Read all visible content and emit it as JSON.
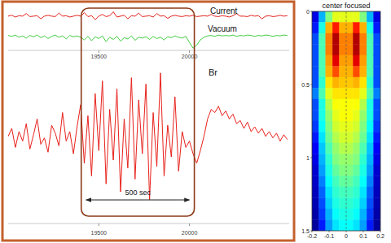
{
  "chart_data": [
    {
      "type": "line",
      "x": [
        19000,
        19020,
        19040,
        19060,
        19080,
        19100,
        19120,
        19140,
        19160,
        19180,
        19200,
        19220,
        19240,
        19260,
        19280,
        19300,
        19320,
        19340,
        19360,
        19380,
        19400,
        19420,
        19440,
        19460,
        19480,
        19500,
        19520,
        19540,
        19560,
        19580,
        19600,
        19620,
        19640,
        19660,
        19680,
        19700,
        19720,
        19740,
        19760,
        19780,
        19800,
        19820,
        19840,
        19860,
        19880,
        19900,
        19920,
        19940,
        19960,
        19980,
        20000,
        20020,
        20040,
        20060,
        20080,
        20100,
        20120,
        20140,
        20160,
        20180,
        20200,
        20220,
        20240,
        20260,
        20280,
        20300,
        20320,
        20340,
        20360,
        20380,
        20400,
        20420,
        20440,
        20460,
        20480,
        20500,
        20520,
        20540
      ],
      "xlim": [
        19000,
        20550
      ],
      "xticks": [
        19500,
        20000
      ],
      "ylim": [
        0,
        100
      ],
      "series": [
        {
          "name": "Current",
          "color": "#e3211c",
          "values": [
            78,
            80,
            76,
            79,
            78,
            84,
            77,
            78,
            79,
            72,
            78,
            80,
            78,
            77,
            85,
            78,
            79,
            76,
            78,
            80,
            78,
            86,
            77,
            79,
            70,
            78,
            82,
            77,
            79,
            88,
            76,
            78,
            80,
            72,
            79,
            78,
            85,
            77,
            78,
            79,
            76,
            84,
            78,
            79,
            73,
            78,
            80,
            78,
            77,
            79,
            78,
            80,
            77,
            78,
            79,
            78,
            82,
            78,
            77,
            79,
            78,
            76,
            79,
            84,
            78,
            78,
            77,
            80,
            78,
            79,
            72,
            78,
            79,
            77,
            78,
            80,
            78,
            79
          ]
        },
        {
          "name": "Vacuum",
          "color": "#3fcc3f",
          "values": [
            34,
            32,
            35,
            30,
            33,
            28,
            34,
            31,
            35,
            29,
            33,
            27,
            32,
            35,
            30,
            33,
            26,
            34,
            31,
            33,
            30,
            24,
            32,
            22,
            31,
            27,
            33,
            20,
            30,
            25,
            32,
            21,
            29,
            26,
            33,
            23,
            30,
            28,
            31,
            25,
            32,
            27,
            30,
            24,
            31,
            29,
            33,
            30,
            28,
            32,
            18,
            5,
            12,
            24,
            30,
            33,
            34,
            32,
            35,
            33,
            34,
            33,
            35,
            32,
            34,
            33,
            35,
            34,
            32,
            34,
            33,
            35,
            34,
            32,
            34,
            33,
            35,
            34
          ]
        }
      ]
    },
    {
      "type": "line",
      "x": [
        19000,
        19020,
        19040,
        19060,
        19080,
        19100,
        19120,
        19140,
        19160,
        19180,
        19200,
        19220,
        19240,
        19260,
        19280,
        19300,
        19320,
        19340,
        19360,
        19380,
        19400,
        19420,
        19440,
        19460,
        19480,
        19500,
        19520,
        19540,
        19560,
        19580,
        19600,
        19620,
        19640,
        19660,
        19680,
        19700,
        19720,
        19740,
        19760,
        19780,
        19800,
        19820,
        19840,
        19860,
        19880,
        19900,
        19920,
        19940,
        19960,
        19980,
        20000,
        20020,
        20040,
        20060,
        20080,
        20100,
        20120,
        20140,
        20160,
        20180,
        20200,
        20220,
        20240,
        20260,
        20280,
        20300,
        20320,
        20340,
        20360,
        20380,
        20400,
        20420,
        20440,
        20460,
        20480,
        20500,
        20520,
        20540
      ],
      "xlim": [
        19000,
        20550
      ],
      "xticks": [
        19500,
        20000
      ],
      "ylim": [
        0,
        100
      ],
      "series": [
        {
          "name": "Br",
          "color": "#e8201a",
          "values": [
            55,
            60,
            48,
            58,
            52,
            63,
            47,
            56,
            66,
            50,
            54,
            45,
            62,
            57,
            49,
            70,
            52,
            58,
            44,
            61,
            75,
            38,
            68,
            30,
            82,
            46,
            90,
            25,
            72,
            40,
            85,
            20,
            66,
            35,
            92,
            28,
            78,
            44,
            88,
            15,
            70,
            36,
            95,
            30,
            62,
            42,
            80,
            33,
            58,
            48,
            52,
            44,
            38,
            46,
            55,
            66,
            72,
            70,
            74,
            68,
            71,
            66,
            69,
            63,
            65,
            60,
            64,
            58,
            61,
            57,
            60,
            55,
            58,
            54,
            57,
            52,
            56,
            53
          ]
        }
      ],
      "annotations": [
        {
          "text": "500 sec",
          "x": [
            19430,
            20000
          ]
        }
      ]
    },
    {
      "type": "heatmap",
      "title": "center focused",
      "xlim": [
        -0.2,
        0.2
      ],
      "xticks": [
        -0.2,
        -0.1,
        0,
        0.1,
        0.2
      ],
      "ylim": [
        1.5,
        0
      ],
      "yticks": [
        0,
        0.5,
        1,
        1.5
      ],
      "zlim": [
        0,
        1
      ],
      "cells": [
        [
          0.1,
          0.3,
          0.5,
          0.6,
          0.6,
          0.6,
          0.6,
          0.5,
          0.3,
          0.1
        ],
        [
          0.15,
          0.4,
          0.7,
          0.85,
          0.7,
          0.7,
          0.85,
          0.7,
          0.4,
          0.15
        ],
        [
          0.2,
          0.45,
          0.75,
          0.95,
          0.75,
          0.75,
          0.95,
          0.75,
          0.45,
          0.2
        ],
        [
          0.2,
          0.45,
          0.75,
          0.95,
          0.75,
          0.75,
          0.95,
          0.75,
          0.45,
          0.2
        ],
        [
          0.2,
          0.45,
          0.72,
          0.9,
          0.72,
          0.72,
          0.9,
          0.72,
          0.45,
          0.2
        ],
        [
          0.2,
          0.45,
          0.7,
          0.8,
          0.7,
          0.7,
          0.8,
          0.7,
          0.45,
          0.2
        ],
        [
          0.2,
          0.42,
          0.65,
          0.7,
          0.68,
          0.68,
          0.7,
          0.65,
          0.42,
          0.2
        ],
        [
          0.25,
          0.45,
          0.6,
          0.65,
          0.65,
          0.65,
          0.65,
          0.6,
          0.45,
          0.25
        ],
        [
          0.2,
          0.4,
          0.55,
          0.62,
          0.62,
          0.62,
          0.62,
          0.55,
          0.4,
          0.2
        ],
        [
          0.2,
          0.4,
          0.52,
          0.6,
          0.62,
          0.62,
          0.6,
          0.52,
          0.4,
          0.2
        ],
        [
          0.18,
          0.38,
          0.5,
          0.58,
          0.6,
          0.6,
          0.58,
          0.5,
          0.38,
          0.18
        ],
        [
          0.15,
          0.35,
          0.48,
          0.55,
          0.58,
          0.58,
          0.55,
          0.48,
          0.35,
          0.15
        ],
        [
          0.12,
          0.32,
          0.45,
          0.52,
          0.55,
          0.55,
          0.52,
          0.45,
          0.32,
          0.12
        ],
        [
          0.1,
          0.3,
          0.42,
          0.5,
          0.52,
          0.52,
          0.5,
          0.42,
          0.3,
          0.1
        ],
        [
          0.08,
          0.28,
          0.4,
          0.47,
          0.5,
          0.5,
          0.47,
          0.4,
          0.28,
          0.08
        ],
        [
          0.07,
          0.25,
          0.38,
          0.44,
          0.47,
          0.47,
          0.44,
          0.38,
          0.25,
          0.07
        ],
        [
          0.06,
          0.22,
          0.35,
          0.42,
          0.44,
          0.44,
          0.42,
          0.35,
          0.22,
          0.06
        ],
        [
          0.05,
          0.2,
          0.33,
          0.4,
          0.42,
          0.42,
          0.4,
          0.33,
          0.2,
          0.05
        ],
        [
          0.04,
          0.18,
          0.3,
          0.38,
          0.4,
          0.4,
          0.38,
          0.3,
          0.18,
          0.04
        ],
        [
          0.03,
          0.15,
          0.28,
          0.35,
          0.38,
          0.38,
          0.35,
          0.28,
          0.15,
          0.03
        ]
      ]
    }
  ]
}
